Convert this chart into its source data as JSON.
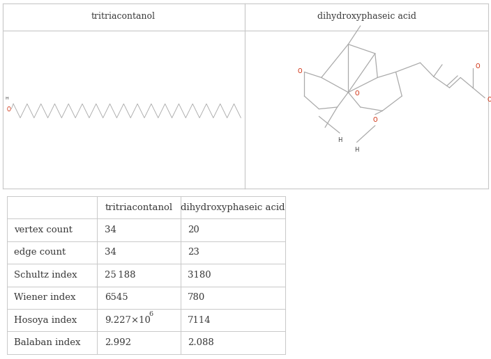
{
  "col1_name": "tritriacontanol",
  "col2_name": "dihydroxyphaseic acid",
  "rows": [
    {
      "label": "vertex count",
      "val1": "34",
      "val2": "20"
    },
    {
      "label": "edge count",
      "val1": "34",
      "val2": "23"
    },
    {
      "label": "Schultz index",
      "val1": "25 188",
      "val2": "3180"
    },
    {
      "label": "Wiener index",
      "val1": "6545",
      "val2": "780"
    },
    {
      "label": "Hosoya index",
      "val1": "9.227×10",
      "val2": "7114"
    },
    {
      "label": "Balaban index",
      "val1": "2.992",
      "val2": "2.088"
    }
  ],
  "bg_color": "#ffffff",
  "border_color": "#c8c8c8",
  "text_color": "#3a3a3a",
  "red_color": "#cc2200",
  "bond_color": "#aaaaaa",
  "bond_color2": "#999999",
  "header_fontsize": 9.0,
  "table_fontsize": 9.5
}
